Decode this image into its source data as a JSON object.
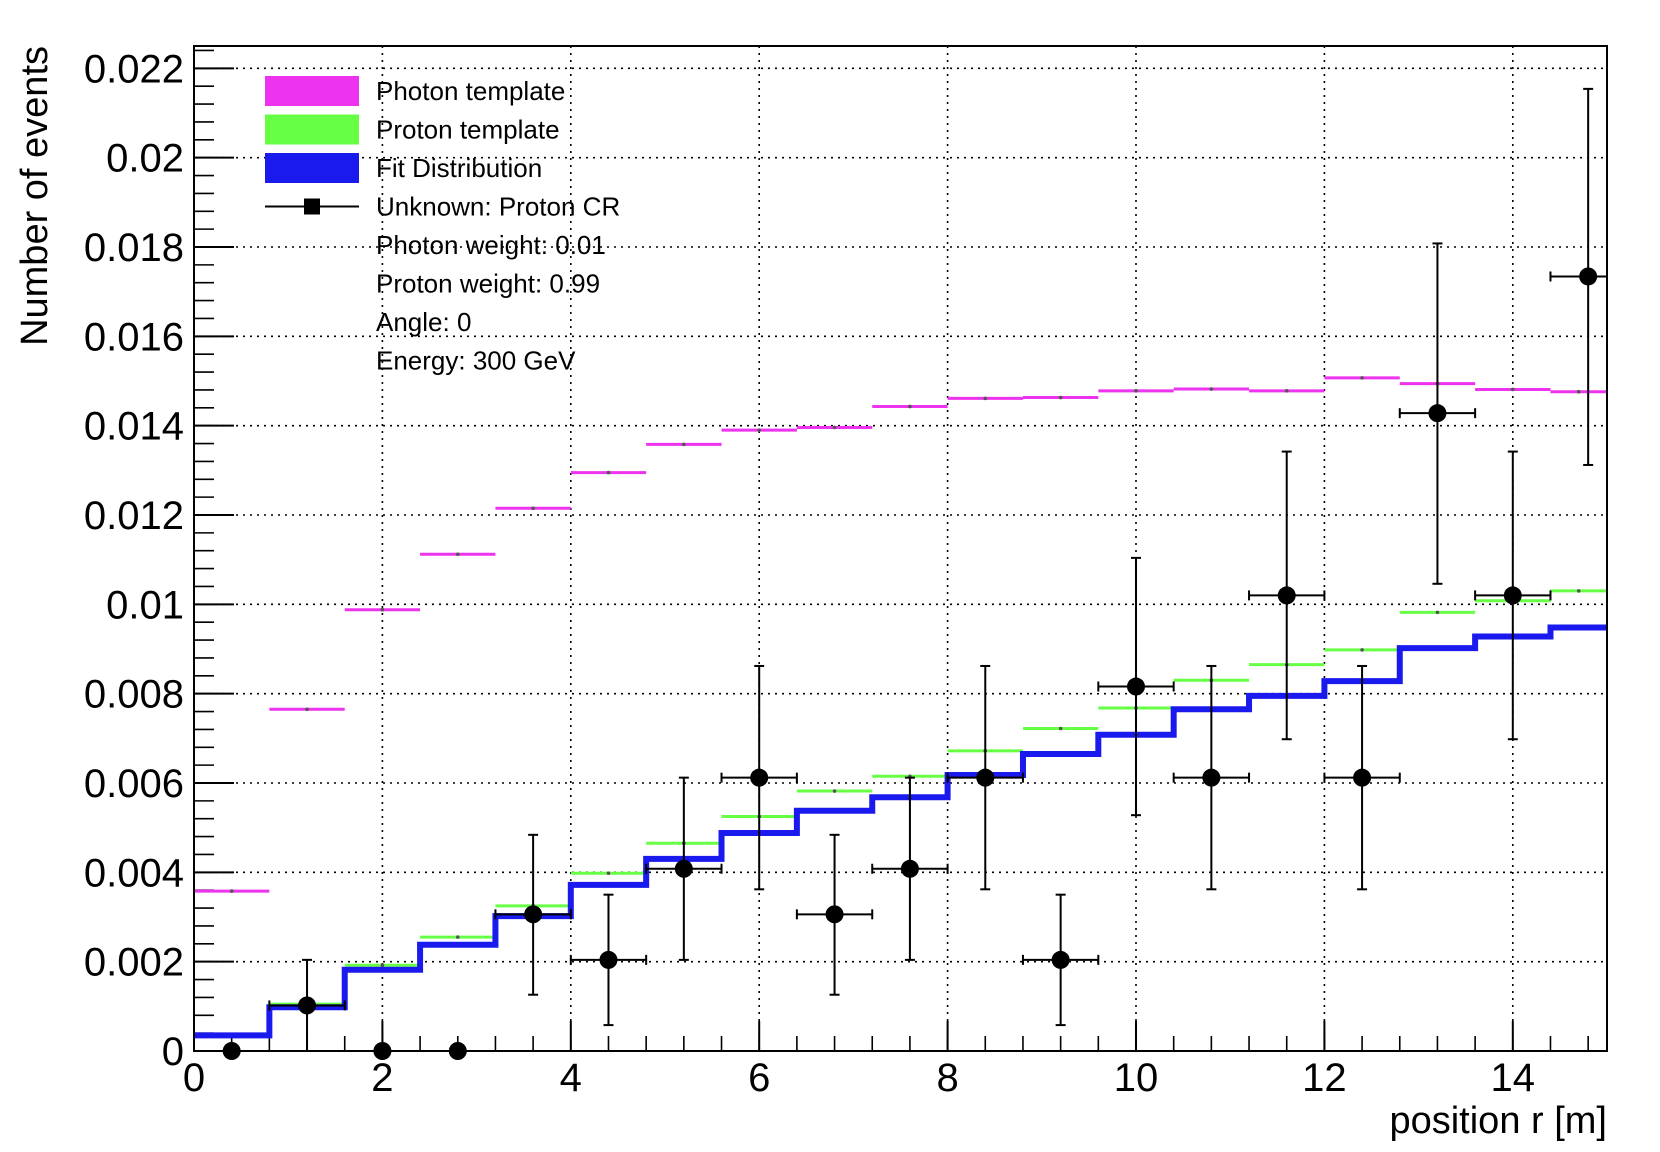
{
  "chart_data": {
    "type": "histogram",
    "xlabel": "position r [m]",
    "ylabel": "Number of events",
    "xlim": [
      0,
      15
    ],
    "ylim": [
      0,
      0.0225
    ],
    "x_ticks": [
      0,
      2,
      4,
      6,
      8,
      10,
      12,
      14
    ],
    "y_ticks": [
      0,
      0.002,
      0.004,
      0.006,
      0.008,
      0.01,
      0.012,
      0.014,
      0.016,
      0.018,
      0.02,
      0.022
    ],
    "y_tick_labels": [
      "0",
      "0.002",
      "0.004",
      "0.006",
      "0.008",
      "0.01",
      "0.012",
      "0.014",
      "0.016",
      "0.018",
      "0.02",
      "0.022"
    ],
    "grid": true,
    "legend_position": "top-left",
    "bin_edges": [
      0,
      0.8,
      1.6,
      2.4,
      3.2,
      4.0,
      4.8,
      5.6,
      6.4,
      7.2,
      8.0,
      8.8,
      9.6,
      10.4,
      11.2,
      12.0,
      12.8,
      13.6,
      14.4,
      15.2
    ],
    "series": [
      {
        "name": "Photon template",
        "kind": "markers",
        "color": "#ee33ee",
        "values": [
          0.00358,
          0.00765,
          0.00988,
          0.01112,
          0.01215,
          0.01295,
          0.01358,
          0.0139,
          0.01396,
          0.01443,
          0.01461,
          0.01463,
          0.01478,
          0.01482,
          0.01478,
          0.01507,
          0.01494,
          0.01481,
          0.01476
        ]
      },
      {
        "name": "Proton template",
        "kind": "markers",
        "color": "#66ff44",
        "values": [
          0.00035,
          0.00105,
          0.00192,
          0.00255,
          0.00325,
          0.00398,
          0.00465,
          0.00525,
          0.00582,
          0.00615,
          0.00672,
          0.00722,
          0.00768,
          0.0083,
          0.00865,
          0.00898,
          0.00982,
          0.01008,
          0.0103
        ]
      },
      {
        "name": "Fit Distribution",
        "kind": "step",
        "color": "#1a1aee",
        "values": [
          0.00035,
          0.00098,
          0.00182,
          0.00238,
          0.00302,
          0.00372,
          0.0043,
          0.00488,
          0.00538,
          0.00568,
          0.00618,
          0.00665,
          0.00708,
          0.00765,
          0.00795,
          0.00828,
          0.00902,
          0.00928,
          0.00948
        ]
      },
      {
        "name": "Unknown: Proton CR",
        "kind": "points",
        "color": "#000000",
        "points": [
          {
            "x": 0.4,
            "y": 0.0,
            "ylo": 0.0,
            "yhi": 0.0
          },
          {
            "x": 1.2,
            "y": 0.00102,
            "ylo": 0.0,
            "yhi": 0.00204
          },
          {
            "x": 2.0,
            "y": 0.0,
            "ylo": 0.0,
            "yhi": 0.0
          },
          {
            "x": 2.8,
            "y": 0.0,
            "ylo": 0.0,
            "yhi": 0.0
          },
          {
            "x": 3.6,
            "y": 0.00306,
            "ylo": 0.00126,
            "yhi": 0.00484
          },
          {
            "x": 4.4,
            "y": 0.00204,
            "ylo": 0.00058,
            "yhi": 0.0035
          },
          {
            "x": 5.2,
            "y": 0.00408,
            "ylo": 0.00204,
            "yhi": 0.00612
          },
          {
            "x": 6.0,
            "y": 0.00612,
            "ylo": 0.00362,
            "yhi": 0.00862
          },
          {
            "x": 6.8,
            "y": 0.00306,
            "ylo": 0.00126,
            "yhi": 0.00484
          },
          {
            "x": 7.6,
            "y": 0.00408,
            "ylo": 0.00204,
            "yhi": 0.00612
          },
          {
            "x": 8.4,
            "y": 0.00612,
            "ylo": 0.00362,
            "yhi": 0.00862
          },
          {
            "x": 9.2,
            "y": 0.00204,
            "ylo": 0.00058,
            "yhi": 0.0035
          },
          {
            "x": 10.0,
            "y": 0.00816,
            "ylo": 0.00528,
            "yhi": 0.01104
          },
          {
            "x": 10.8,
            "y": 0.00612,
            "ylo": 0.00362,
            "yhi": 0.00862
          },
          {
            "x": 11.6,
            "y": 0.0102,
            "ylo": 0.00698,
            "yhi": 0.01342
          },
          {
            "x": 12.4,
            "y": 0.00612,
            "ylo": 0.00362,
            "yhi": 0.00862
          },
          {
            "x": 13.2,
            "y": 0.01428,
            "ylo": 0.01046,
            "yhi": 0.01808
          },
          {
            "x": 14.0,
            "y": 0.0102,
            "ylo": 0.00698,
            "yhi": 0.01342
          },
          {
            "x": 14.8,
            "y": 0.01734,
            "ylo": 0.01312,
            "yhi": 0.02154
          }
        ]
      }
    ],
    "legend": [
      {
        "label": "Photon template",
        "symbol": "fill",
        "color": "#ee33ee"
      },
      {
        "label": "Proton template",
        "symbol": "fill",
        "color": "#66ff44"
      },
      {
        "label": "Fit Distribution",
        "symbol": "fill",
        "color": "#1a1aee"
      },
      {
        "label": "Unknown: Proton CR",
        "symbol": "marker",
        "color": "#000000"
      },
      {
        "label": "Photon weight: 0.01",
        "symbol": "none"
      },
      {
        "label": "Proton weight: 0.99",
        "symbol": "none"
      },
      {
        "label": "Angle: 0",
        "symbol": "none"
      },
      {
        "label": "Energy: 300 GeV",
        "symbol": "none"
      }
    ]
  }
}
